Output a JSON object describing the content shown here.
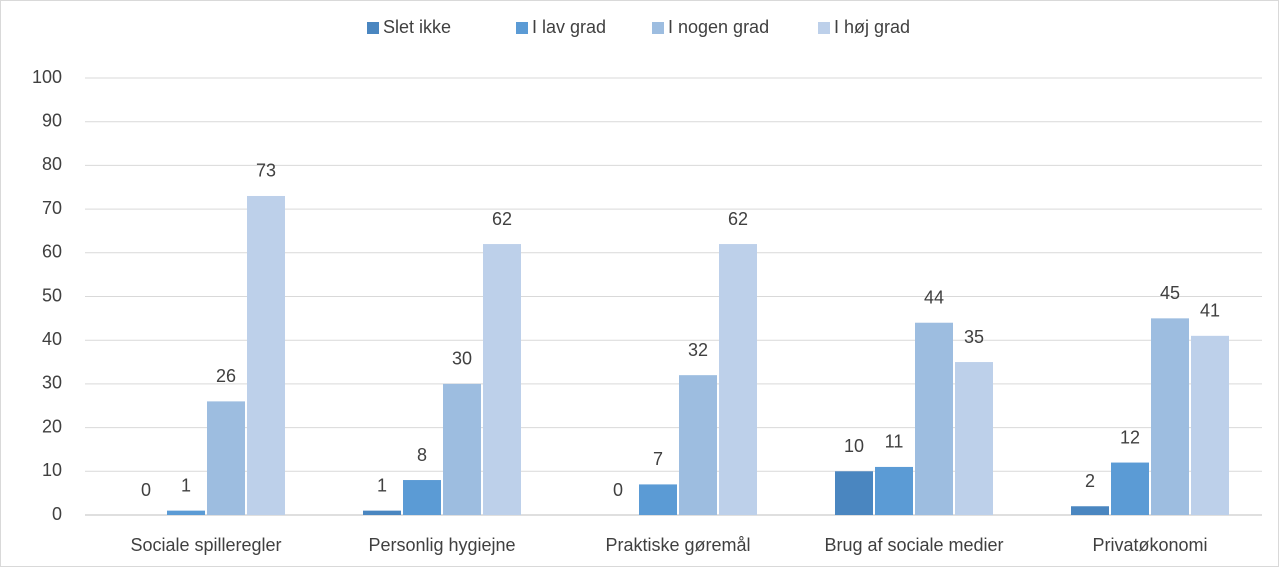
{
  "chart_data": {
    "type": "bar",
    "categories": [
      "Sociale spilleregler",
      "Personlig hygiejne",
      "Praktiske gøremål",
      "Brug af sociale medier",
      "Privatøkonomi"
    ],
    "series": [
      {
        "name": "Slet ikke",
        "color": "#4a86c0",
        "values": [
          0,
          1,
          0,
          10,
          2
        ]
      },
      {
        "name": "I lav grad",
        "color": "#5b9bd5",
        "values": [
          1,
          8,
          7,
          11,
          12
        ]
      },
      {
        "name": "I nogen grad",
        "color": "#9dbde0",
        "values": [
          26,
          30,
          32,
          44,
          45
        ]
      },
      {
        "name": "I høj grad",
        "color": "#bdd0ea",
        "values": [
          73,
          62,
          62,
          35,
          41
        ]
      }
    ],
    "ylim": [
      0,
      100
    ],
    "yticks": [
      0,
      10,
      20,
      30,
      40,
      50,
      60,
      70,
      80,
      90,
      100
    ],
    "grid": true,
    "legend": "top"
  }
}
